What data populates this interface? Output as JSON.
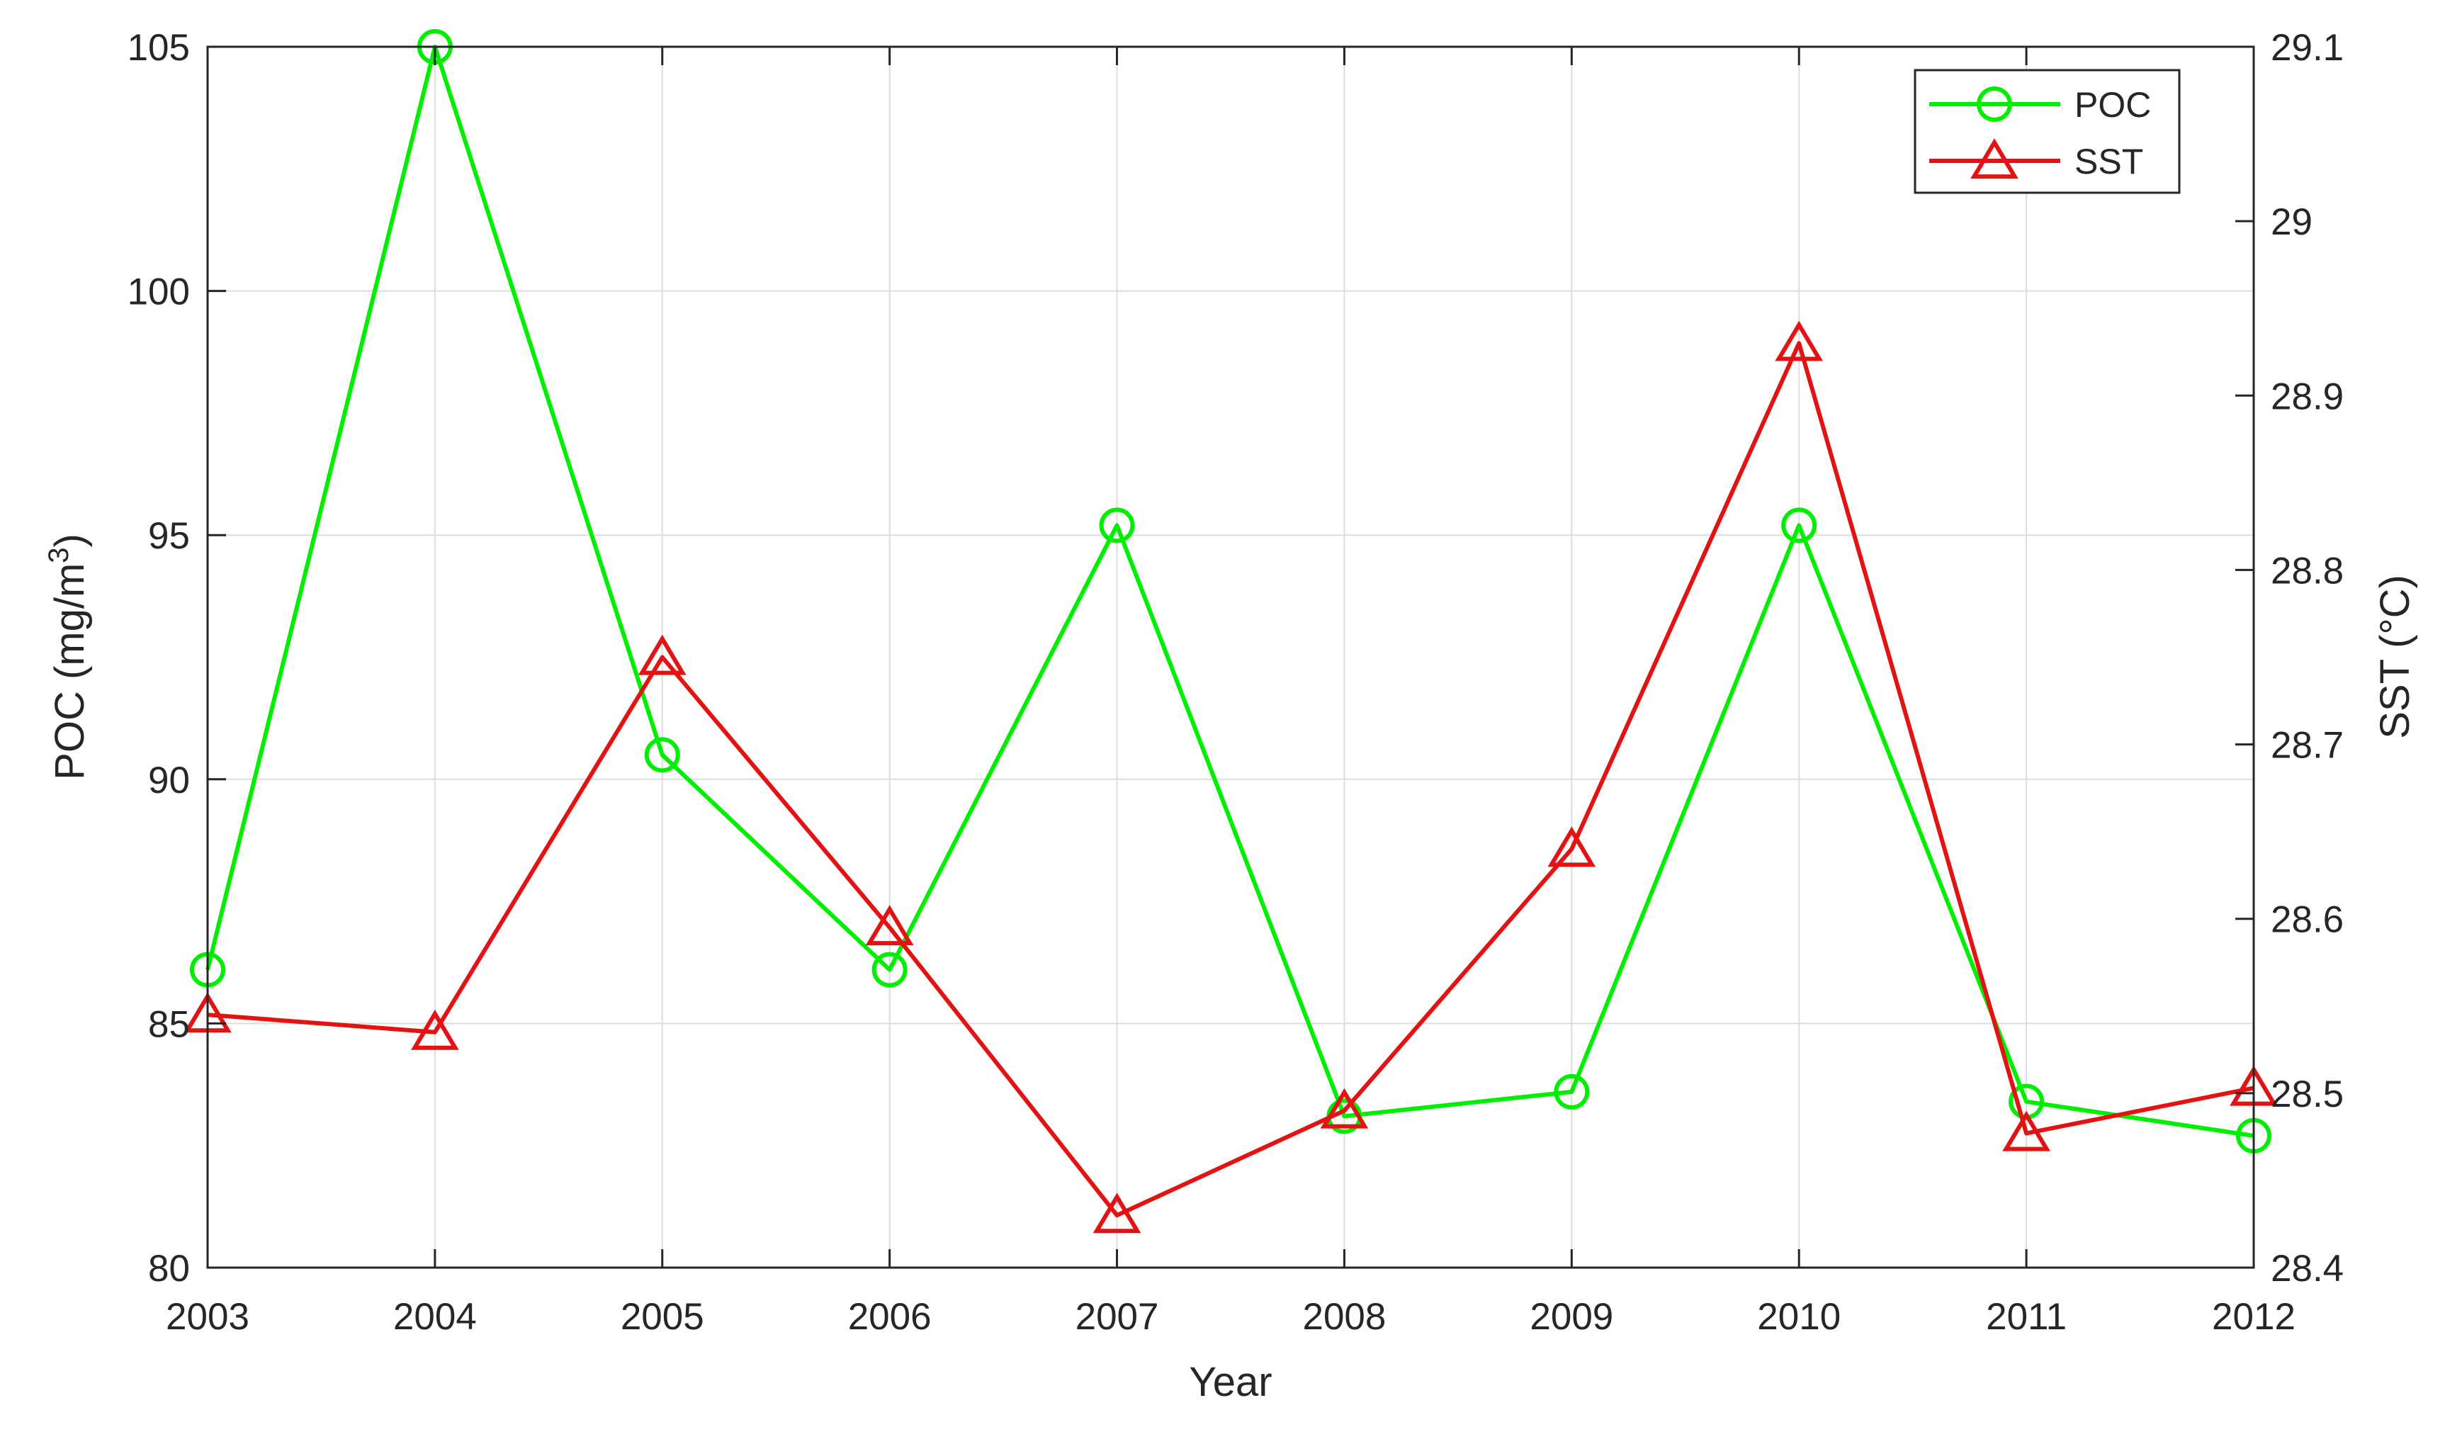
{
  "chart_data": {
    "type": "line",
    "x": [
      "2003",
      "2004",
      "2005",
      "2006",
      "2007",
      "2008",
      "2009",
      "2010",
      "2011",
      "2012"
    ],
    "xlabel": "Year",
    "ylabel_left": {
      "main": "POC (mg/m",
      "sup": "3",
      "close": ")"
    },
    "ylabel_right": "SST (°C)",
    "ylim_left": [
      80,
      105
    ],
    "yticks_left": [
      "80",
      "85",
      "90",
      "95",
      "100",
      "105"
    ],
    "ylim_right": [
      28.4,
      29.1
    ],
    "yticks_right": [
      "28.4",
      "28.5",
      "28.6",
      "28.7",
      "28.8",
      "28.9",
      "29",
      "29.1"
    ],
    "grid": true,
    "legend_position": "top-right",
    "series": [
      {
        "name": "POC",
        "axis": "left",
        "color": "#00ee00",
        "marker": "circle",
        "values": [
          86.1,
          105.0,
          90.5,
          86.1,
          95.2,
          83.1,
          83.6,
          95.2,
          83.4,
          82.7
        ]
      },
      {
        "name": "SST",
        "axis": "right",
        "color": "#e41313",
        "marker": "triangle",
        "values": [
          28.545,
          28.535,
          28.75,
          28.595,
          28.43,
          28.49,
          28.64,
          28.93,
          28.477,
          28.503
        ]
      }
    ]
  }
}
